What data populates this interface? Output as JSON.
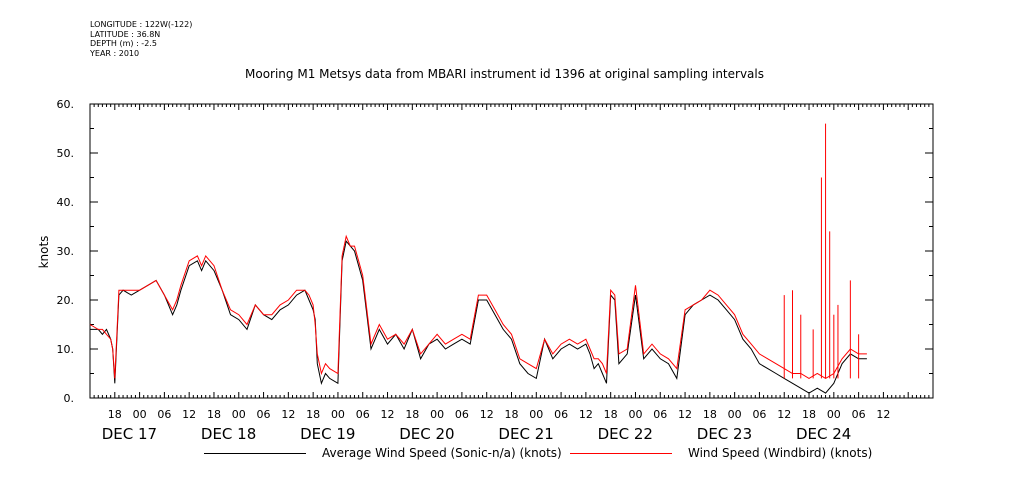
{
  "header": {
    "longitude": "LONGITUDE : 122W(-122)",
    "latitude": "LATITUDE : 36.8N",
    "depth": "DEPTH (m) : -2.5",
    "year": "YEAR : 2010"
  },
  "chart_data": {
    "type": "line",
    "title": "Mooring M1 Metsys data from MBARI instrument id 1396 at original sampling intervals",
    "xlabel": "",
    "ylabel": "knots",
    "ylim": [
      0,
      60
    ],
    "yticks": [
      "0.",
      "10.",
      "20.",
      "30.",
      "40.",
      "50.",
      "60."
    ],
    "xlim_hours": [
      0,
      186
    ],
    "x_tick_labels": [
      {
        "h": 6,
        "label": "18"
      },
      {
        "h": 12,
        "label": "00"
      },
      {
        "h": 18,
        "label": "06"
      },
      {
        "h": 24,
        "label": "12"
      },
      {
        "h": 30,
        "label": "18"
      },
      {
        "h": 36,
        "label": "00"
      },
      {
        "h": 42,
        "label": "06"
      },
      {
        "h": 48,
        "label": "12"
      },
      {
        "h": 54,
        "label": "18"
      },
      {
        "h": 60,
        "label": "00"
      },
      {
        "h": 66,
        "label": "06"
      },
      {
        "h": 72,
        "label": "12"
      },
      {
        "h": 78,
        "label": "18"
      },
      {
        "h": 84,
        "label": "00"
      },
      {
        "h": 90,
        "label": "06"
      },
      {
        "h": 96,
        "label": "12"
      },
      {
        "h": 102,
        "label": "18"
      },
      {
        "h": 108,
        "label": "00"
      },
      {
        "h": 114,
        "label": "06"
      },
      {
        "h": 120,
        "label": "12"
      },
      {
        "h": 126,
        "label": "18"
      },
      {
        "h": 132,
        "label": "00"
      },
      {
        "h": 138,
        "label": "06"
      },
      {
        "h": 144,
        "label": "12"
      },
      {
        "h": 150,
        "label": "18"
      },
      {
        "h": 156,
        "label": "00"
      },
      {
        "h": 162,
        "label": "06"
      },
      {
        "h": 168,
        "label": "12"
      },
      {
        "h": 174,
        "label": "18"
      },
      {
        "h": 180,
        "label": "00"
      },
      {
        "h": 186,
        "label": "06"
      },
      {
        "h": 192,
        "label": "12"
      }
    ],
    "date_labels": [
      {
        "h": 3,
        "label": "DEC 17"
      },
      {
        "h": 27,
        "label": "DEC 18"
      },
      {
        "h": 51,
        "label": "DEC 19"
      },
      {
        "h": 75,
        "label": "DEC 20"
      },
      {
        "h": 99,
        "label": "DEC 21"
      },
      {
        "h": 123,
        "label": "DEC 22"
      },
      {
        "h": 147,
        "label": "DEC 23"
      },
      {
        "h": 171,
        "label": "DEC 24"
      }
    ],
    "series": [
      {
        "name": "Average Wind Speed (Sonic-n/a) (knots)",
        "color": "#000000",
        "x_hours": [
          0,
          2,
          3,
          4,
          5,
          5.5,
          6,
          7,
          8,
          10,
          12,
          14,
          16,
          18,
          20,
          21,
          22,
          24,
          26,
          27,
          28,
          30,
          32,
          34,
          36,
          38,
          40,
          42,
          44,
          46,
          48,
          50,
          52,
          53,
          54,
          54.5,
          55,
          56,
          57,
          58,
          60,
          61,
          62,
          63,
          64,
          66,
          68,
          70,
          72,
          74,
          76,
          78,
          80,
          82,
          84,
          86,
          88,
          90,
          92,
          94,
          96,
          98,
          100,
          102,
          104,
          106,
          108,
          110,
          112,
          114,
          116,
          118,
          120,
          121,
          122,
          123,
          124,
          125,
          126,
          127,
          128,
          130,
          132,
          134,
          136,
          138,
          140,
          142,
          144,
          146,
          148,
          150,
          152,
          154,
          156,
          158,
          160,
          162,
          164,
          166,
          168,
          170,
          172,
          174,
          176,
          178,
          180,
          182,
          184,
          186,
          188
        ],
        "y": [
          14,
          14,
          13,
          14,
          12,
          10,
          3,
          21,
          22,
          21,
          22,
          23,
          24,
          21,
          17,
          19,
          22,
          27,
          28,
          26,
          28,
          26,
          22,
          17,
          16,
          14,
          19,
          17,
          16,
          18,
          19,
          21,
          22,
          20,
          18,
          16,
          7,
          3,
          5,
          4,
          3,
          28,
          32,
          31,
          30,
          24,
          10,
          14,
          11,
          13,
          10,
          14,
          8,
          11,
          12,
          10,
          11,
          12,
          11,
          20,
          20,
          17,
          14,
          12,
          7,
          5,
          4,
          12,
          8,
          10,
          11,
          10,
          11,
          9,
          6,
          7,
          5,
          3,
          21,
          20,
          7,
          9,
          21,
          8,
          10,
          8,
          7,
          4,
          17,
          19,
          20,
          21,
          20,
          18,
          16,
          12,
          10,
          7,
          6,
          5,
          4,
          3,
          2,
          1,
          2,
          1,
          3,
          7,
          9,
          8,
          8
        ],
        "values_note": "black trace (averaged, sparse); low tail near 1-3 knots Dec 23 18 - Dec 24 06"
      },
      {
        "name": "Wind Speed (Windbird) (knots)",
        "color": "#ff0000",
        "x_hours": [
          0,
          2,
          3,
          4,
          5,
          5.5,
          6,
          7,
          8,
          10,
          12,
          14,
          16,
          18,
          20,
          21,
          22,
          24,
          26,
          27,
          28,
          30,
          32,
          34,
          36,
          38,
          40,
          42,
          44,
          46,
          48,
          50,
          52,
          53,
          54,
          54.5,
          55,
          56,
          57,
          58,
          60,
          61,
          62,
          63,
          64,
          66,
          68,
          70,
          72,
          74,
          76,
          78,
          80,
          82,
          84,
          86,
          88,
          90,
          92,
          94,
          96,
          98,
          100,
          102,
          104,
          106,
          108,
          110,
          112,
          114,
          116,
          118,
          120,
          121,
          122,
          123,
          124,
          125,
          126,
          127,
          128,
          130,
          132,
          134,
          136,
          138,
          140,
          142,
          144,
          146,
          148,
          150,
          152,
          154,
          156,
          158,
          160,
          162,
          164,
          166,
          168,
          170,
          172,
          174,
          176,
          178,
          180,
          182,
          184,
          186,
          188
        ],
        "y": [
          15,
          14,
          14,
          13,
          12,
          10,
          4,
          22,
          22,
          22,
          22,
          23,
          24,
          21,
          18,
          20,
          23,
          28,
          29,
          27,
          29,
          27,
          22,
          18,
          17,
          15,
          19,
          17,
          17,
          19,
          20,
          22,
          22,
          21,
          19,
          15,
          9,
          5,
          7,
          6,
          5,
          29,
          33,
          31,
          31,
          25,
          11,
          15,
          12,
          13,
          11,
          14,
          9,
          11,
          13,
          11,
          12,
          13,
          12,
          21,
          21,
          18,
          15,
          13,
          8,
          7,
          6,
          12,
          9,
          11,
          12,
          11,
          12,
          10,
          8,
          8,
          7,
          5,
          22,
          21,
          9,
          10,
          23,
          9,
          11,
          9,
          8,
          6,
          18,
          19,
          20,
          22,
          21,
          19,
          17,
          13,
          11,
          9,
          8,
          7,
          6,
          5,
          5,
          4,
          5,
          4,
          5,
          8,
          10,
          9,
          9
        ],
        "spikes": [
          {
            "x": 168,
            "y": 21
          },
          {
            "x": 170,
            "y": 22
          },
          {
            "x": 172,
            "y": 17
          },
          {
            "x": 175,
            "y": 14
          },
          {
            "x": 177,
            "y": 45
          },
          {
            "x": 178,
            "y": 56
          },
          {
            "x": 179,
            "y": 34
          },
          {
            "x": 180,
            "y": 17
          },
          {
            "x": 181,
            "y": 19
          },
          {
            "x": 184,
            "y": 24
          },
          {
            "x": 186,
            "y": 13
          }
        ]
      }
    ],
    "legend_placement": "bottom",
    "grid": false
  }
}
